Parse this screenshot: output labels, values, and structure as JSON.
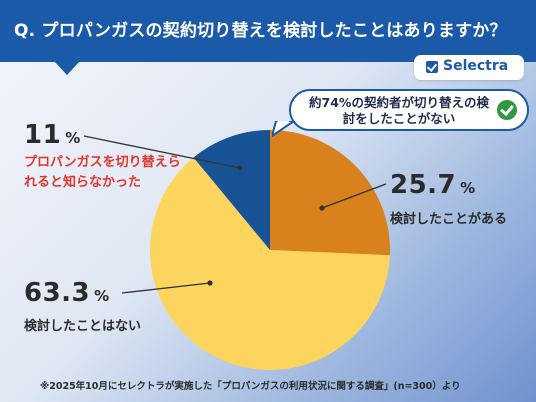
{
  "header": {
    "title": "Q. プロパンガスの契約切り替えを検討したことはありますか？"
  },
  "logo": {
    "text": "Selectra"
  },
  "callout": {
    "text": "約74%の契約者が切り替えの検討をしたことがない",
    "check_color": "#2e9a40"
  },
  "chart_data": {
    "type": "pie",
    "slices": [
      {
        "label": "検討したことがある",
        "value": 25.7,
        "color": "#d9821d"
      },
      {
        "label": "検討したことはない",
        "value": 63.3,
        "color": "#fbd55e"
      },
      {
        "label": "プロパンガスを切り替えられれると知らなかった",
        "value": 11,
        "color": "#185396"
      }
    ],
    "display_values": [
      "25.7",
      "63.3",
      "11"
    ],
    "unit": "%",
    "start_angle_deg": 0,
    "direction": "clockwise"
  },
  "labels": {
    "done": {
      "value": "25.7",
      "unit": "%",
      "text": "検討したことがある"
    },
    "never": {
      "value": "63.3",
      "unit": "%",
      "text": "検討したことはない"
    },
    "unaware": {
      "value": "11",
      "unit": "%",
      "text": "プロパンガスを切り替えられると知らなかった"
    }
  },
  "footnote": "※2025年10月にセレクトラが実施した「プロパンガスの利用状況に関する調査」(n=300）より",
  "colors": {
    "header": "#1b5aa8",
    "accent_red": "#e0362c"
  }
}
